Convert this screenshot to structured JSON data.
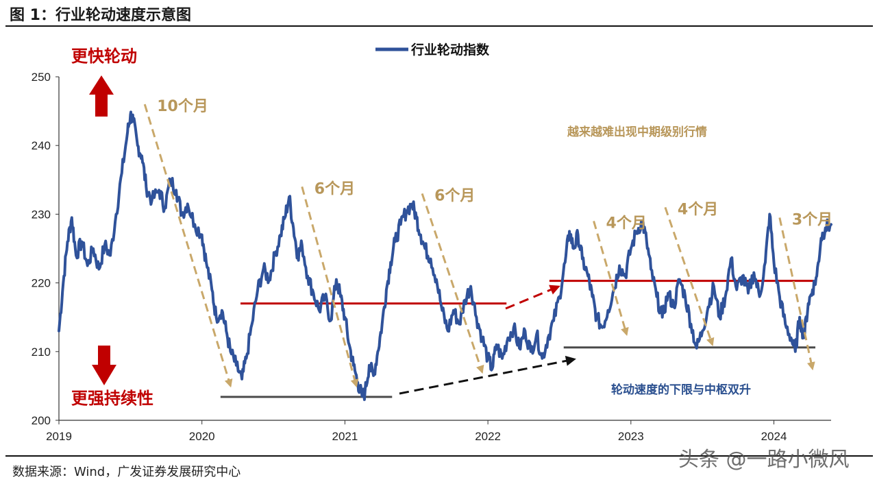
{
  "figure": {
    "title": "图 1：行业轮动速度示意图",
    "source": "数据来源：Wind，广发证券发展研究中心",
    "watermark": "头条 @一路小微风"
  },
  "colors": {
    "series": "#2f529a",
    "band": "#c00000",
    "floor": "#4a4a4a",
    "arrow_dash": "#c9a86a",
    "arrow_black": "#111111",
    "arrow_red": "#c00000"
  },
  "chart_data": {
    "type": "line",
    "title": "",
    "xlabel": "",
    "ylabel": "",
    "ylim": [
      200,
      250
    ],
    "xlim": [
      2019.0,
      2024.4
    ],
    "y_ticks": [
      200,
      210,
      220,
      230,
      240,
      250
    ],
    "x_ticks": [
      "2019",
      "2020",
      "2021",
      "2022",
      "2023",
      "2024"
    ],
    "legend": {
      "position": "top-center",
      "entries": [
        "行业轮动指数"
      ]
    },
    "series": [
      {
        "name": "行业轮动指数",
        "points": [
          [
            2019.0,
            213.0
          ],
          [
            2019.03,
            220.0
          ],
          [
            2019.06,
            226.0
          ],
          [
            2019.09,
            229.5
          ],
          [
            2019.12,
            224.0
          ],
          [
            2019.16,
            226.0
          ],
          [
            2019.2,
            222.5
          ],
          [
            2019.24,
            225.0
          ],
          [
            2019.28,
            222.0
          ],
          [
            2019.32,
            225.5
          ],
          [
            2019.36,
            224.0
          ],
          [
            2019.4,
            230.0
          ],
          [
            2019.44,
            236.0
          ],
          [
            2019.48,
            242.0
          ],
          [
            2019.5,
            244.5
          ],
          [
            2019.52,
            243.5
          ],
          [
            2019.55,
            240.0
          ],
          [
            2019.58,
            238.5
          ],
          [
            2019.61,
            234.0
          ],
          [
            2019.65,
            232.0
          ],
          [
            2019.7,
            233.5
          ],
          [
            2019.74,
            231.0
          ],
          [
            2019.78,
            235.0
          ],
          [
            2019.82,
            233.5
          ],
          [
            2019.86,
            230.0
          ],
          [
            2019.9,
            231.5
          ],
          [
            2019.95,
            228.5
          ],
          [
            2020.0,
            227.0
          ],
          [
            2020.03,
            223.0
          ],
          [
            2020.07,
            219.0
          ],
          [
            2020.1,
            215.0
          ],
          [
            2020.14,
            216.0
          ],
          [
            2020.17,
            213.0
          ],
          [
            2020.2,
            210.0
          ],
          [
            2020.24,
            208.0
          ],
          [
            2020.28,
            206.0
          ],
          [
            2020.31,
            209.0
          ],
          [
            2020.35,
            214.0
          ],
          [
            2020.39,
            219.0
          ],
          [
            2020.43,
            222.0
          ],
          [
            2020.47,
            220.5
          ],
          [
            2020.51,
            224.0
          ],
          [
            2020.55,
            227.0
          ],
          [
            2020.58,
            229.5
          ],
          [
            2020.61,
            232.5
          ],
          [
            2020.64,
            228.0
          ],
          [
            2020.67,
            224.0
          ],
          [
            2020.7,
            225.5
          ],
          [
            2020.74,
            221.0
          ],
          [
            2020.78,
            218.5
          ],
          [
            2020.82,
            216.0
          ],
          [
            2020.86,
            218.0
          ],
          [
            2020.9,
            214.5
          ],
          [
            2020.94,
            220.5
          ],
          [
            2020.97,
            218.0
          ],
          [
            2021.0,
            215.0
          ],
          [
            2021.03,
            211.0
          ],
          [
            2021.06,
            208.0
          ],
          [
            2021.09,
            205.5
          ],
          [
            2021.12,
            203.5
          ],
          [
            2021.14,
            204.0
          ],
          [
            2021.17,
            208.0
          ],
          [
            2021.2,
            206.5
          ],
          [
            2021.23,
            210.0
          ],
          [
            2021.26,
            214.0
          ],
          [
            2021.29,
            219.0
          ],
          [
            2021.32,
            223.0
          ],
          [
            2021.35,
            226.0
          ],
          [
            2021.39,
            228.5
          ],
          [
            2021.43,
            230.5
          ],
          [
            2021.47,
            231.5
          ],
          [
            2021.5,
            229.5
          ],
          [
            2021.53,
            227.0
          ],
          [
            2021.56,
            225.0
          ],
          [
            2021.6,
            223.5
          ],
          [
            2021.64,
            220.5
          ],
          [
            2021.68,
            216.0
          ],
          [
            2021.72,
            213.0
          ],
          [
            2021.76,
            216.0
          ],
          [
            2021.8,
            214.0
          ],
          [
            2021.84,
            217.5
          ],
          [
            2021.88,
            219.5
          ],
          [
            2021.92,
            215.0
          ],
          [
            2021.96,
            212.0
          ],
          [
            2022.0,
            209.0
          ],
          [
            2022.03,
            207.5
          ],
          [
            2022.06,
            211.0
          ],
          [
            2022.1,
            209.0
          ],
          [
            2022.14,
            212.0
          ],
          [
            2022.18,
            213.5
          ],
          [
            2022.22,
            210.5
          ],
          [
            2022.26,
            213.0
          ],
          [
            2022.3,
            210.0
          ],
          [
            2022.34,
            212.5
          ],
          [
            2022.38,
            209.0
          ],
          [
            2022.42,
            212.0
          ],
          [
            2022.46,
            214.5
          ],
          [
            2022.5,
            218.0
          ],
          [
            2022.54,
            223.0
          ],
          [
            2022.57,
            227.5
          ],
          [
            2022.6,
            225.0
          ],
          [
            2022.63,
            227.0
          ],
          [
            2022.66,
            223.5
          ],
          [
            2022.7,
            221.0
          ],
          [
            2022.73,
            218.0
          ],
          [
            2022.76,
            215.0
          ],
          [
            2022.8,
            213.5
          ],
          [
            2022.84,
            216.0
          ],
          [
            2022.88,
            219.0
          ],
          [
            2022.92,
            222.5
          ],
          [
            2022.96,
            221.0
          ],
          [
            2023.0,
            225.0
          ],
          [
            2023.04,
            227.5
          ],
          [
            2023.08,
            229.0
          ],
          [
            2023.11,
            226.0
          ],
          [
            2023.14,
            222.0
          ],
          [
            2023.18,
            218.0
          ],
          [
            2023.22,
            215.0
          ],
          [
            2023.26,
            218.5
          ],
          [
            2023.3,
            216.5
          ],
          [
            2023.34,
            220.5
          ],
          [
            2023.38,
            218.0
          ],
          [
            2023.42,
            214.0
          ],
          [
            2023.46,
            210.5
          ],
          [
            2023.5,
            213.0
          ],
          [
            2023.54,
            216.5
          ],
          [
            2023.58,
            219.5
          ],
          [
            2023.62,
            215.0
          ],
          [
            2023.66,
            218.0
          ],
          [
            2023.7,
            223.5
          ],
          [
            2023.74,
            219.0
          ],
          [
            2023.78,
            221.0
          ],
          [
            2023.82,
            218.5
          ],
          [
            2023.86,
            221.5
          ],
          [
            2023.9,
            218.0
          ],
          [
            2023.94,
            223.0
          ],
          [
            2023.97,
            230.0
          ],
          [
            2024.0,
            223.0
          ],
          [
            2024.04,
            218.0
          ],
          [
            2024.08,
            214.0
          ],
          [
            2024.12,
            212.0
          ],
          [
            2024.15,
            210.0
          ],
          [
            2024.18,
            215.0
          ],
          [
            2024.21,
            212.0
          ],
          [
            2024.24,
            217.0
          ],
          [
            2024.27,
            219.0
          ],
          [
            2024.3,
            221.0
          ],
          [
            2024.33,
            226.5
          ],
          [
            2024.36,
            228.0
          ],
          [
            2024.4,
            228.5
          ]
        ]
      }
    ],
    "reference_lines": [
      {
        "name": "中枢线1",
        "y": 217.0,
        "x_range": [
          2020.27,
          2022.13
        ],
        "color": "red"
      },
      {
        "name": "中枢线2",
        "y": 220.3,
        "x_range": [
          2022.43,
          2024.29
        ],
        "color": "red"
      },
      {
        "name": "下限线1",
        "y": 203.4,
        "x_range": [
          2020.13,
          2021.33
        ],
        "color": "black"
      },
      {
        "name": "下限线2",
        "y": 210.6,
        "x_range": [
          2022.53,
          2024.29
        ],
        "color": "black"
      }
    ],
    "arrows": [
      {
        "name": "decline-arrow-1",
        "from": [
          2019.6,
          246.0
        ],
        "to": [
          2020.2,
          205.0
        ],
        "label": "10个月"
      },
      {
        "name": "decline-arrow-2",
        "from": [
          2020.7,
          234.0
        ],
        "to": [
          2021.08,
          205.0
        ],
        "label": "6个月"
      },
      {
        "name": "decline-arrow-3",
        "from": [
          2021.54,
          233.0
        ],
        "to": [
          2021.96,
          207.0
        ],
        "label": "6个月"
      },
      {
        "name": "decline-arrow-4",
        "from": [
          2022.74,
          229.0
        ],
        "to": [
          2022.97,
          212.5
        ],
        "label": "4个月"
      },
      {
        "name": "decline-arrow-5",
        "from": [
          2023.24,
          231.0
        ],
        "to": [
          2023.57,
          211.0
        ],
        "label": "4个月"
      },
      {
        "name": "decline-arrow-6",
        "from": [
          2024.04,
          229.5
        ],
        "to": [
          2024.27,
          207.5
        ],
        "label": "3个月"
      }
    ],
    "annotations": {
      "faster": "更快轮动",
      "stronger": "更强持续性",
      "harder": "越来越难出现中期级别行情",
      "floor_rising": "轮动速度的下限与中枢双升"
    }
  }
}
